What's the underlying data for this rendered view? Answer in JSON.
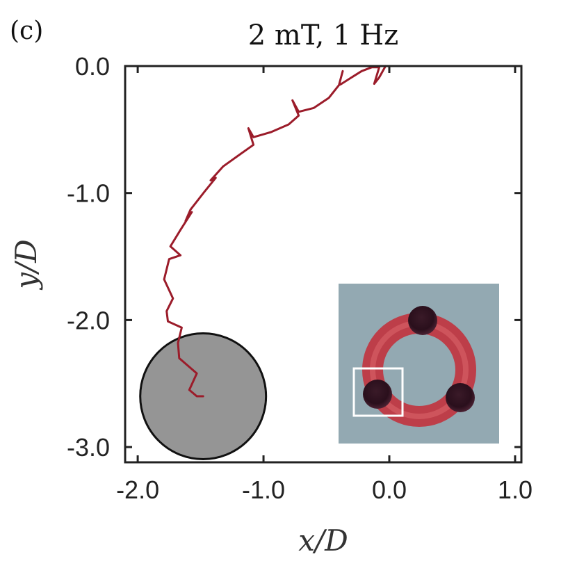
{
  "panel_label": "(c)",
  "chart_data": {
    "type": "line",
    "title": "2 mT, 1 Hz",
    "xlabel": "x/D",
    "ylabel": "y/D",
    "xlim": [
      -2.1,
      1.05
    ],
    "ylim": [
      -3.12,
      0.0
    ],
    "xticks": [
      -2.0,
      -1.0,
      0.0,
      1.0
    ],
    "xtick_labels": [
      "-2.0",
      "-1.0",
      "0.0",
      "1.0"
    ],
    "yticks": [
      0.0,
      -1.0,
      -2.0,
      -3.0
    ],
    "ytick_labels": [
      "0.0",
      "-1.0",
      "-2.0",
      "-3.0"
    ],
    "grid": false,
    "series": [
      {
        "color": "#9b1c2a",
        "x": [
          -0.03,
          -0.08,
          -0.12,
          -0.08,
          -0.14,
          -0.22,
          -0.3,
          -0.38,
          -0.4,
          -0.37,
          -0.4,
          -0.48,
          -0.6,
          -0.72,
          -0.77,
          -0.72,
          -0.8,
          -0.94,
          -1.08,
          -1.12,
          -1.08,
          -1.18,
          -1.32,
          -1.42,
          -1.38,
          -1.47,
          -1.58,
          -1.62,
          -1.57,
          -1.66,
          -1.74,
          -1.66,
          -1.75,
          -1.79,
          -1.72,
          -1.77,
          -1.76,
          -1.65,
          -1.68,
          -1.67,
          -1.53,
          -1.59,
          -1.53,
          -1.48
        ],
        "y": [
          0.0,
          -0.09,
          -0.14,
          -0.01,
          -0.01,
          -0.04,
          -0.09,
          -0.14,
          -0.15,
          -0.04,
          -0.15,
          -0.25,
          -0.33,
          -0.36,
          -0.27,
          -0.39,
          -0.46,
          -0.52,
          -0.56,
          -0.49,
          -0.62,
          -0.69,
          -0.79,
          -0.9,
          -0.88,
          -0.99,
          -1.13,
          -1.22,
          -1.15,
          -1.29,
          -1.42,
          -1.49,
          -1.52,
          -1.68,
          -1.83,
          -1.93,
          -2.01,
          -2.06,
          -2.18,
          -2.3,
          -2.42,
          -2.55,
          -2.6,
          -2.6
        ]
      }
    ],
    "obstacle": {
      "shape": "circle",
      "center_x": -1.48,
      "center_y": -2.6,
      "radius": 0.5,
      "fill": "#959595",
      "stroke": "#111111"
    }
  }
}
